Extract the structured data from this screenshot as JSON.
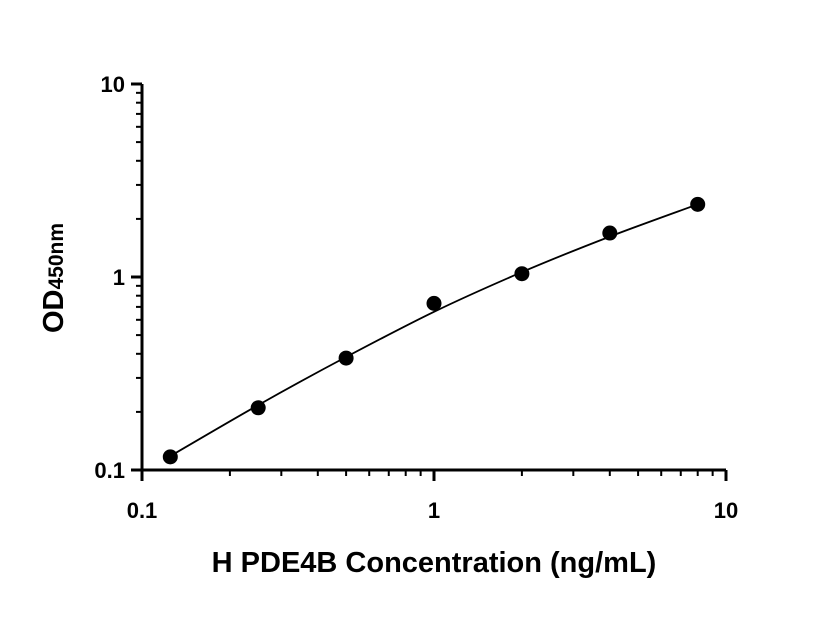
{
  "chart_data": {
    "type": "scatter",
    "title": "",
    "xlabel": "H PDE4B Concentration (ng/mL)",
    "ylabel": {
      "main": "OD",
      "sub": "450nm"
    },
    "xscale": "log",
    "yscale": "log",
    "xlim": [
      0.1,
      10
    ],
    "ylim": [
      0.1,
      10
    ],
    "xticks": [
      {
        "value": 0.1,
        "label": "0.1"
      },
      {
        "value": 1,
        "label": "1"
      },
      {
        "value": 10,
        "label": "10"
      }
    ],
    "yticks": [
      {
        "value": 0.1,
        "label": "0.1"
      },
      {
        "value": 1,
        "label": "1"
      },
      {
        "value": 10,
        "label": "10"
      }
    ],
    "grid": false,
    "legend": "none",
    "series": [
      {
        "x": [
          0.125,
          0.25,
          0.5,
          1,
          2,
          4,
          8
        ],
        "y": [
          0.117,
          0.21,
          0.38,
          0.73,
          1.04,
          1.69,
          2.38
        ]
      }
    ],
    "fit_curve": {
      "x": [
        0.125,
        0.25,
        0.5,
        1,
        2,
        4,
        8
      ],
      "y": [
        0.118,
        0.217,
        0.385,
        0.66,
        1.06,
        1.62,
        2.38
      ]
    },
    "colors": {
      "marker": "#000000",
      "line": "#000000",
      "axis": "#000000"
    }
  }
}
